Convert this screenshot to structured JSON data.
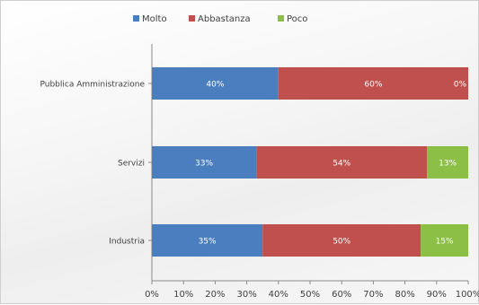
{
  "chart_data": {
    "type": "bar",
    "orientation": "horizontal",
    "stacked": true,
    "categories": [
      "Pubblica Amministrazione",
      "Servizi",
      "Industria"
    ],
    "series": [
      {
        "name": "Molto",
        "color": "#4a7ebf",
        "values": [
          40,
          33,
          35
        ],
        "labels": [
          "40%",
          "33%",
          "35%"
        ]
      },
      {
        "name": "Abbastanza",
        "color": "#c0504d",
        "values": [
          60,
          54,
          50
        ],
        "labels": [
          "60%",
          "54%",
          "50%"
        ]
      },
      {
        "name": "Poco",
        "color": "#8cbf45",
        "values": [
          0,
          13,
          15
        ],
        "labels": [
          "0%",
          "13%",
          "15%"
        ]
      }
    ],
    "xticks": [
      "0%",
      "10%",
      "20%",
      "30%",
      "40%",
      "50%",
      "60%",
      "70%",
      "80%",
      "90%",
      "100%"
    ],
    "xlim": [
      0,
      100
    ],
    "legend_position": "top",
    "grid": false
  }
}
